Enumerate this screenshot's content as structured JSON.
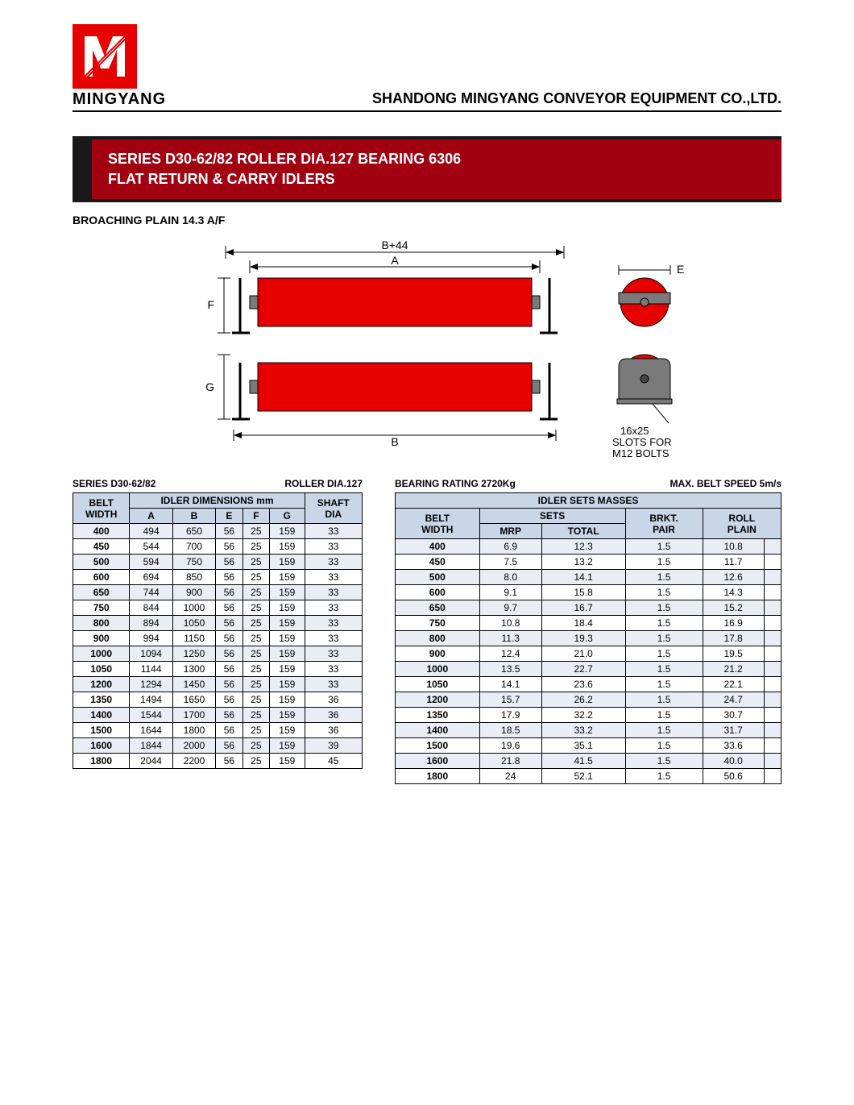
{
  "brand": "MINGYANG",
  "company": "SHANDONG MINGYANG CONVEYOR EQUIPMENT CO.,LTD.",
  "title_line1": "SERIES D30-62/82 ROLLER DIA.127 BEARING 6306",
  "title_line2": "FLAT RETURN & CARRY IDLERS",
  "subtitle": "BROACHING PLAIN 14.3 A/F",
  "colors": {
    "accent_red": "#e60000",
    "dark_red": "#a00010",
    "band_dark": "#191919",
    "th_bg": "#c9d6e8",
    "row_alt": "#e9eef6",
    "border": "#000000",
    "roller_red": "#e60000",
    "bracket_gray": "#7a7a7a"
  },
  "diagram": {
    "labels": {
      "top_dim": "B+44",
      "A": "A",
      "B": "B",
      "E": "E",
      "F": "F",
      "G": "G",
      "slots": "16x25\nSLOTS FOR\nM12 BOLTS"
    }
  },
  "table1": {
    "caption_left": "SERIES D30-62/82",
    "caption_right": "ROLLER DIA.127",
    "h_belt_width": "BELT\nWIDTH",
    "h_idler_dims": "IDLER DIMENSIONS mm",
    "h_shaft_dia": "SHAFT\nDIA",
    "cols": [
      "A",
      "B",
      "E",
      "F",
      "G"
    ],
    "rows": [
      {
        "bw": "400",
        "A": "494",
        "B": "650",
        "E": "56",
        "F": "25",
        "G": "159",
        "SD": "33"
      },
      {
        "bw": "450",
        "A": "544",
        "B": "700",
        "E": "56",
        "F": "25",
        "G": "159",
        "SD": "33"
      },
      {
        "bw": "500",
        "A": "594",
        "B": "750",
        "E": "56",
        "F": "25",
        "G": "159",
        "SD": "33"
      },
      {
        "bw": "600",
        "A": "694",
        "B": "850",
        "E": "56",
        "F": "25",
        "G": "159",
        "SD": "33"
      },
      {
        "bw": "650",
        "A": "744",
        "B": "900",
        "E": "56",
        "F": "25",
        "G": "159",
        "SD": "33"
      },
      {
        "bw": "750",
        "A": "844",
        "B": "1000",
        "E": "56",
        "F": "25",
        "G": "159",
        "SD": "33"
      },
      {
        "bw": "800",
        "A": "894",
        "B": "1050",
        "E": "56",
        "F": "25",
        "G": "159",
        "SD": "33"
      },
      {
        "bw": "900",
        "A": "994",
        "B": "1150",
        "E": "56",
        "F": "25",
        "G": "159",
        "SD": "33"
      },
      {
        "bw": "1000",
        "A": "1094",
        "B": "1250",
        "E": "56",
        "F": "25",
        "G": "159",
        "SD": "33"
      },
      {
        "bw": "1050",
        "A": "1144",
        "B": "1300",
        "E": "56",
        "F": "25",
        "G": "159",
        "SD": "33"
      },
      {
        "bw": "1200",
        "A": "1294",
        "B": "1450",
        "E": "56",
        "F": "25",
        "G": "159",
        "SD": "33"
      },
      {
        "bw": "1350",
        "A": "1494",
        "B": "1650",
        "E": "56",
        "F": "25",
        "G": "159",
        "SD": "36"
      },
      {
        "bw": "1400",
        "A": "1544",
        "B": "1700",
        "E": "56",
        "F": "25",
        "G": "159",
        "SD": "36"
      },
      {
        "bw": "1500",
        "A": "1644",
        "B": "1800",
        "E": "56",
        "F": "25",
        "G": "159",
        "SD": "36"
      },
      {
        "bw": "1600",
        "A": "1844",
        "B": "2000",
        "E": "56",
        "F": "25",
        "G": "159",
        "SD": "39"
      },
      {
        "bw": "1800",
        "A": "2044",
        "B": "2200",
        "E": "56",
        "F": "25",
        "G": "159",
        "SD": "45"
      }
    ]
  },
  "table2": {
    "caption_left": "BEARING RATING 2720Kg",
    "caption_right": "MAX. BELT SPEED 5m/s",
    "h_idler_sets": "IDLER SETS MASSES",
    "h_belt_width": "BELT\nWIDTH",
    "h_sets": "SETS",
    "h_brkt": "BRKT.\nPAIR",
    "h_roll": "ROLL\nPLAIN",
    "h_mrp": "MRP",
    "h_total": "TOTAL",
    "rows": [
      {
        "bw": "400",
        "mrp": "6.9",
        "total": "12.3",
        "brkt": "1.5",
        "roll": "10.8"
      },
      {
        "bw": "450",
        "mrp": "7.5",
        "total": "13.2",
        "brkt": "1.5",
        "roll": "11.7"
      },
      {
        "bw": "500",
        "mrp": "8.0",
        "total": "14.1",
        "brkt": "1.5",
        "roll": "12.6"
      },
      {
        "bw": "600",
        "mrp": "9.1",
        "total": "15.8",
        "brkt": "1.5",
        "roll": "14.3"
      },
      {
        "bw": "650",
        "mrp": "9.7",
        "total": "16.7",
        "brkt": "1.5",
        "roll": "15.2"
      },
      {
        "bw": "750",
        "mrp": "10.8",
        "total": "18.4",
        "brkt": "1.5",
        "roll": "16.9"
      },
      {
        "bw": "800",
        "mrp": "11.3",
        "total": "19.3",
        "brkt": "1.5",
        "roll": "17.8"
      },
      {
        "bw": "900",
        "mrp": "12.4",
        "total": "21.0",
        "brkt": "1.5",
        "roll": "19.5"
      },
      {
        "bw": "1000",
        "mrp": "13.5",
        "total": "22.7",
        "brkt": "1.5",
        "roll": "21.2"
      },
      {
        "bw": "1050",
        "mrp": "14.1",
        "total": "23.6",
        "brkt": "1.5",
        "roll": "22.1"
      },
      {
        "bw": "1200",
        "mrp": "15.7",
        "total": "26.2",
        "brkt": "1.5",
        "roll": "24.7"
      },
      {
        "bw": "1350",
        "mrp": "17.9",
        "total": "32.2",
        "brkt": "1.5",
        "roll": "30.7"
      },
      {
        "bw": "1400",
        "mrp": "18.5",
        "total": "33.2",
        "brkt": "1.5",
        "roll": "31.7"
      },
      {
        "bw": "1500",
        "mrp": "19.6",
        "total": "35.1",
        "brkt": "1.5",
        "roll": "33.6"
      },
      {
        "bw": "1600",
        "mrp": "21.8",
        "total": "41.5",
        "brkt": "1.5",
        "roll": "40.0"
      },
      {
        "bw": "1800",
        "mrp": "24",
        "total": "52.1",
        "brkt": "1.5",
        "roll": "50.6"
      }
    ]
  }
}
